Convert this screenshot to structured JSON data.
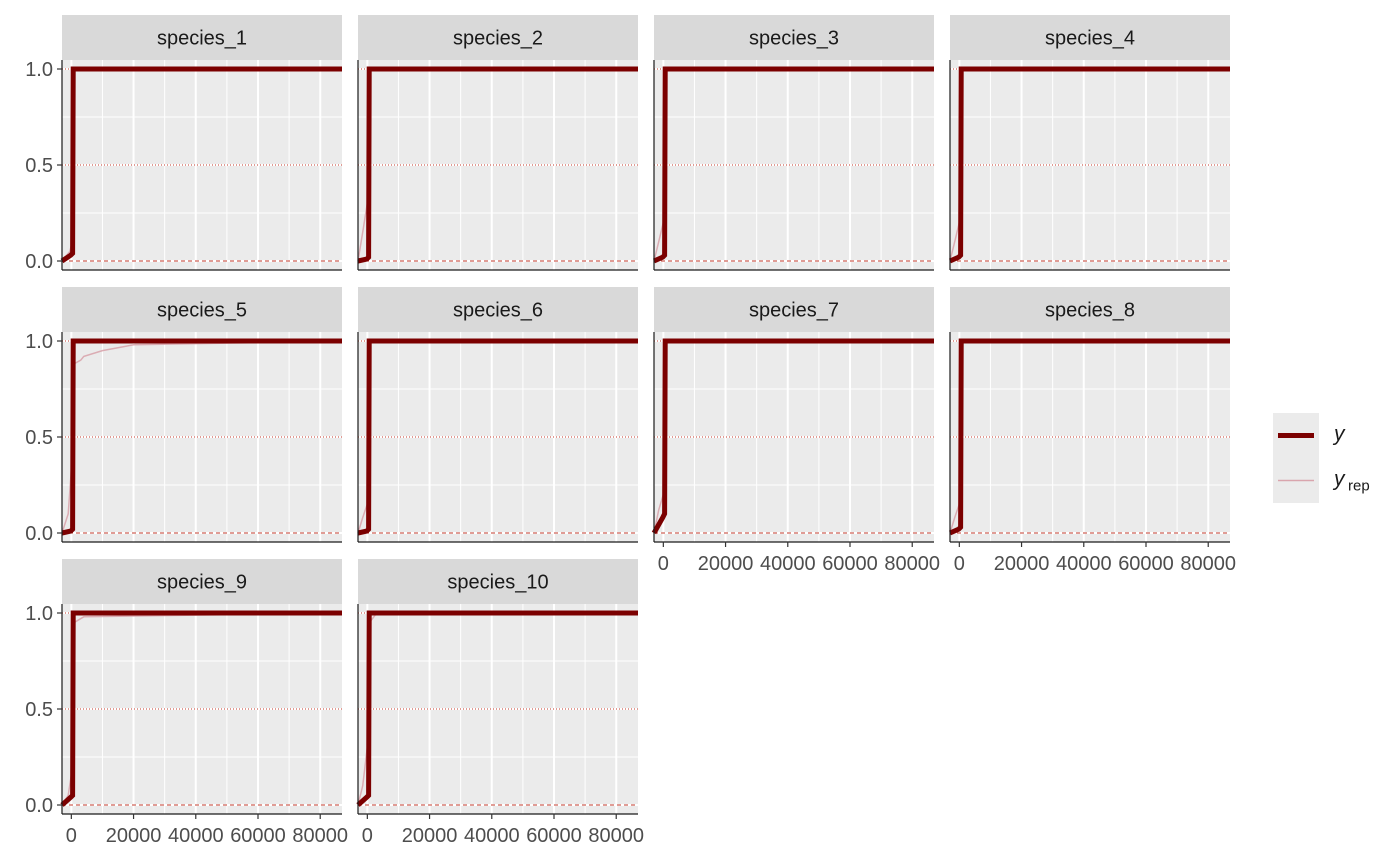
{
  "chart_data": {
    "type": "line",
    "description_kind": "faceted empirical CDF (posterior predictive check)",
    "xlim": [
      -3000,
      87000
    ],
    "ylim": [
      0,
      1
    ],
    "x_ticks": [
      0,
      20000,
      40000,
      60000,
      80000
    ],
    "x_tick_labels": [
      "0",
      "20000",
      "40000",
      "60000",
      "80000"
    ],
    "y_ticks": [
      0,
      0.5,
      1
    ],
    "y_tick_labels": [
      "0.0",
      "0.5",
      "1.0"
    ],
    "reference_lines": [
      {
        "y": 0,
        "style": "dashed"
      },
      {
        "y": 0.5,
        "style": "dotted"
      },
      {
        "y": 1,
        "style": "dotted"
      }
    ],
    "colors": {
      "y": "#7b0000",
      "yrep": "#d9a5ad",
      "panel_bg": "#ebebeb",
      "strip_bg": "#d9d9d9"
    },
    "legend": {
      "position": "right",
      "entries": [
        {
          "key": "y",
          "label": "y",
          "sub": ""
        },
        {
          "key": "yrep",
          "label": "y",
          "sub": "rep"
        }
      ]
    },
    "facets": [
      {
        "label": "species_1",
        "y": [
          [
            -3000,
            0
          ],
          [
            -200,
            0.03
          ],
          [
            400,
            0.04
          ],
          [
            600,
            1
          ],
          [
            87000,
            1
          ]
        ],
        "yrep": [
          [
            -3000,
            0
          ],
          [
            -500,
            0.05
          ],
          [
            300,
            0.1
          ],
          [
            800,
            1
          ],
          [
            87000,
            1
          ]
        ]
      },
      {
        "label": "species_2",
        "y": [
          [
            -3000,
            0
          ],
          [
            -200,
            0.01
          ],
          [
            400,
            0.02
          ],
          [
            600,
            1
          ],
          [
            87000,
            1
          ]
        ],
        "yrep": [
          [
            -3000,
            0
          ],
          [
            -1500,
            0.15
          ],
          [
            0,
            0.3
          ],
          [
            700,
            1
          ],
          [
            87000,
            1
          ]
        ]
      },
      {
        "label": "species_3",
        "y": [
          [
            -3000,
            0
          ],
          [
            -200,
            0.02
          ],
          [
            400,
            0.03
          ],
          [
            600,
            1
          ],
          [
            87000,
            1
          ]
        ],
        "yrep": [
          [
            -3000,
            0
          ],
          [
            -1500,
            0.1
          ],
          [
            0,
            0.2
          ],
          [
            700,
            1
          ],
          [
            87000,
            1
          ]
        ]
      },
      {
        "label": "species_4",
        "y": [
          [
            -3000,
            0
          ],
          [
            -200,
            0.02
          ],
          [
            400,
            0.03
          ],
          [
            600,
            1
          ],
          [
            87000,
            1
          ]
        ],
        "yrep": [
          [
            -3000,
            0
          ],
          [
            -1500,
            0.1
          ],
          [
            0,
            0.2
          ],
          [
            700,
            1
          ],
          [
            87000,
            1
          ]
        ]
      },
      {
        "label": "species_5",
        "y": [
          [
            -3000,
            0
          ],
          [
            -200,
            0.01
          ],
          [
            400,
            0.02
          ],
          [
            600,
            1
          ],
          [
            87000,
            1
          ]
        ],
        "yrep": [
          [
            -3000,
            0
          ],
          [
            -1000,
            0.1
          ],
          [
            300,
            0.4
          ],
          [
            800,
            0.88
          ],
          [
            3000,
            0.9
          ],
          [
            4000,
            0.92
          ],
          [
            10000,
            0.95
          ],
          [
            20000,
            0.98
          ],
          [
            87000,
            1
          ]
        ]
      },
      {
        "label": "species_6",
        "y": [
          [
            -3000,
            0
          ],
          [
            -200,
            0.01
          ],
          [
            400,
            0.02
          ],
          [
            600,
            1
          ],
          [
            87000,
            1
          ]
        ],
        "yrep": [
          [
            -3000,
            0
          ],
          [
            -1500,
            0.08
          ],
          [
            0,
            0.15
          ],
          [
            700,
            1
          ],
          [
            87000,
            1
          ]
        ]
      },
      {
        "label": "species_7",
        "y": [
          [
            -3000,
            0
          ],
          [
            -200,
            0.08
          ],
          [
            400,
            0.1
          ],
          [
            600,
            1
          ],
          [
            87000,
            1
          ]
        ],
        "yrep": [
          [
            -3000,
            0
          ],
          [
            -1500,
            0.12
          ],
          [
            0,
            0.2
          ],
          [
            700,
            1
          ],
          [
            87000,
            1
          ]
        ]
      },
      {
        "label": "species_8",
        "y": [
          [
            -3000,
            0
          ],
          [
            -200,
            0.02
          ],
          [
            400,
            0.03
          ],
          [
            600,
            1
          ],
          [
            87000,
            1
          ]
        ],
        "yrep": [
          [
            -3000,
            0
          ],
          [
            -1500,
            0.08
          ],
          [
            0,
            0.15
          ],
          [
            700,
            1
          ],
          [
            87000,
            1
          ]
        ]
      },
      {
        "label": "species_9",
        "y": [
          [
            -3000,
            0
          ],
          [
            -200,
            0.04
          ],
          [
            400,
            0.05
          ],
          [
            600,
            1
          ],
          [
            87000,
            1
          ]
        ],
        "yrep": [
          [
            -3000,
            0
          ],
          [
            -1000,
            0.05
          ],
          [
            400,
            0.2
          ],
          [
            900,
            0.95
          ],
          [
            4000,
            0.98
          ],
          [
            87000,
            1
          ]
        ]
      },
      {
        "label": "species_10",
        "y": [
          [
            -3000,
            0
          ],
          [
            -200,
            0.04
          ],
          [
            400,
            0.05
          ],
          [
            600,
            1
          ],
          [
            87000,
            1
          ]
        ],
        "yrep": [
          [
            -3000,
            0
          ],
          [
            -1500,
            0.1
          ],
          [
            0,
            0.3
          ],
          [
            700,
            0.95
          ],
          [
            3000,
            1
          ],
          [
            87000,
            1
          ]
        ]
      }
    ]
  }
}
